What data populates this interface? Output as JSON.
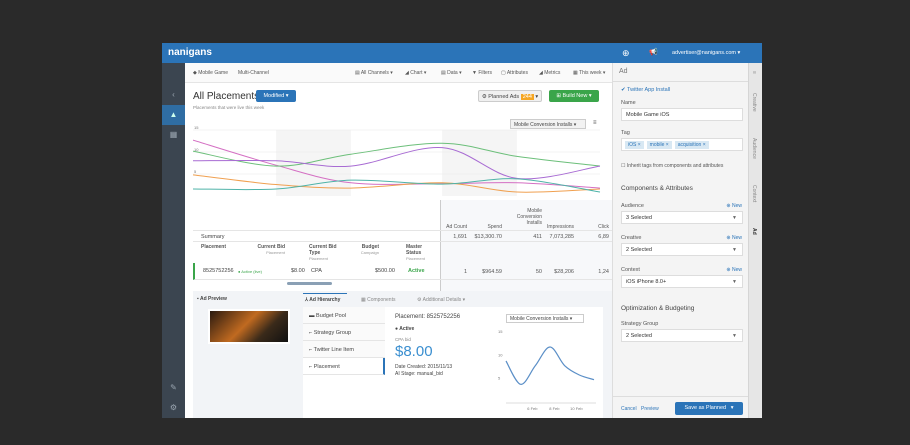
{
  "app": {
    "logo": "nanigans",
    "user": "advertiser@nanigans.com ▾",
    "plus_icon": "plus-circle-icon",
    "announce_icon": "megaphone-icon",
    "accent": "#2b74b8"
  },
  "breadcrumb": [
    "Mobile Game",
    "Multi-Channel"
  ],
  "toolbar": [
    "All Channels ▾",
    "Chart ▾",
    "Data ▾",
    "Filters",
    "Attributes",
    "Metrics",
    "This week ▾"
  ],
  "page": {
    "title": "All Placements",
    "filter_button": "Modified ▾",
    "subtitle": "Placements that were live this week",
    "planned_ads": "Planned Ads",
    "planned_count": "244",
    "build_new": "Build New ▾"
  },
  "chart_data": {
    "type": "line",
    "metric_select": "Mobile Conversion Installs ▾",
    "x_ticks": [
      "6 Feb",
      "8 Feb",
      "10 Feb"
    ],
    "x_tick_values": [
      6,
      8,
      10
    ],
    "xlim": [
      3.3,
      13.1
    ],
    "y_ticks": [
      "15",
      "10",
      "5"
    ],
    "y_tick_values": [
      15,
      10,
      5
    ],
    "ylim": [
      0,
      15
    ],
    "grid": true,
    "x": [
      3.3,
      5.3,
      7.1,
      9.3,
      11.1,
      13.1
    ],
    "series": [
      {
        "color": "#d46fc3",
        "values": [
          12.7,
          7,
          3,
          2.8,
          3,
          1.8
        ]
      },
      {
        "color": "#6cbf7a",
        "values": [
          10.2,
          6.8,
          9.5,
          12,
          9,
          6.8
        ]
      },
      {
        "color": "#a86bd3",
        "values": [
          8,
          8,
          6.8,
          11,
          4,
          6.8
        ]
      },
      {
        "color": "#f0a050",
        "values": [
          4.8,
          2.6,
          1.8,
          3,
          0.9,
          1.6
        ]
      },
      {
        "color": "#4fb3a8",
        "values": [
          1.6,
          1.6,
          3.6,
          2.7,
          3.9,
          0.9
        ]
      }
    ]
  },
  "table": {
    "metric_headers": [
      "Ad Count",
      "Spend",
      "Mobile Conversion Installs",
      "Impressions",
      "Click"
    ],
    "summary_label": "Summary",
    "summary_values": [
      "1,691",
      "$13,300.70",
      "411",
      "7,073,285",
      "6,89"
    ],
    "headers": [
      {
        "t": "Placement"
      },
      {
        "t": "Current Bid",
        "s": "Placement"
      },
      {
        "t": "Current Bid Type",
        "s": "Placement"
      },
      {
        "t": "Budget",
        "s": "Campaign"
      },
      {
        "t": "Master Status",
        "s": "Placement"
      }
    ],
    "row": {
      "placement": "8525752256",
      "live": "● Active (live)",
      "bid": "$8.00",
      "bid_type": "CPA",
      "budget": "$500.00",
      "status": "Active",
      "metrics": [
        "1",
        "$964.59",
        "50",
        "$28,206",
        "1,24"
      ]
    }
  },
  "detail": {
    "ad_preview": "Ad Preview",
    "tabs": [
      "Ad Hierarchy",
      "Components",
      "Additional Details ▾"
    ],
    "hierarchy": [
      "Budget Pool",
      "Strategy Group",
      "Twitter Line Item",
      "Placement"
    ],
    "placement_title": "Placement: 8525752256",
    "status": "● Active",
    "bid_label": "CPA bid",
    "bid": "$8.00",
    "created": "Date Created: 2015/11/13",
    "ai_stage": "AI Stage: manual_bid",
    "mini_chart": {
      "metric_select": "Mobile Conversion Installs ▾",
      "x_ticks": [
        "6 Feb",
        "8 Feb",
        "10 Feb"
      ],
      "y_ticks": [
        "15",
        "10",
        "5"
      ],
      "x": [
        0,
        1,
        2,
        3,
        4,
        5,
        6
      ],
      "values": [
        9,
        4,
        8,
        12,
        8,
        6,
        5
      ],
      "color": "#5b8fc7"
    }
  },
  "panel": {
    "title": "Ad",
    "type": "Twitter App Install",
    "name_label": "Name",
    "name_value": "Mobile Game iOS",
    "tag_label": "Tag",
    "tags": [
      "iOS ×",
      "mobile ×",
      "acquisition ×"
    ],
    "inherit": "Inherit tags from components and attributes",
    "comp_title": "Components & Attributes",
    "fields": [
      {
        "label": "Audience",
        "value": "3 Selected",
        "new": "⊕ New"
      },
      {
        "label": "Creative",
        "value": "2 Selected",
        "new": "⊕ New"
      },
      {
        "label": "Context",
        "value": "iOS iPhone 8.0+",
        "new": "⊕ New"
      }
    ],
    "opt_title": "Optimization & Budgeting",
    "strategy_label": "Strategy Group",
    "strategy_value": "2 Selected",
    "cancel": "Cancel",
    "preview": "Preview",
    "save": "Save as Planned",
    "save_caret": "▾",
    "vtabs": [
      "Creative",
      "Audience",
      "Context",
      "Ad"
    ]
  }
}
